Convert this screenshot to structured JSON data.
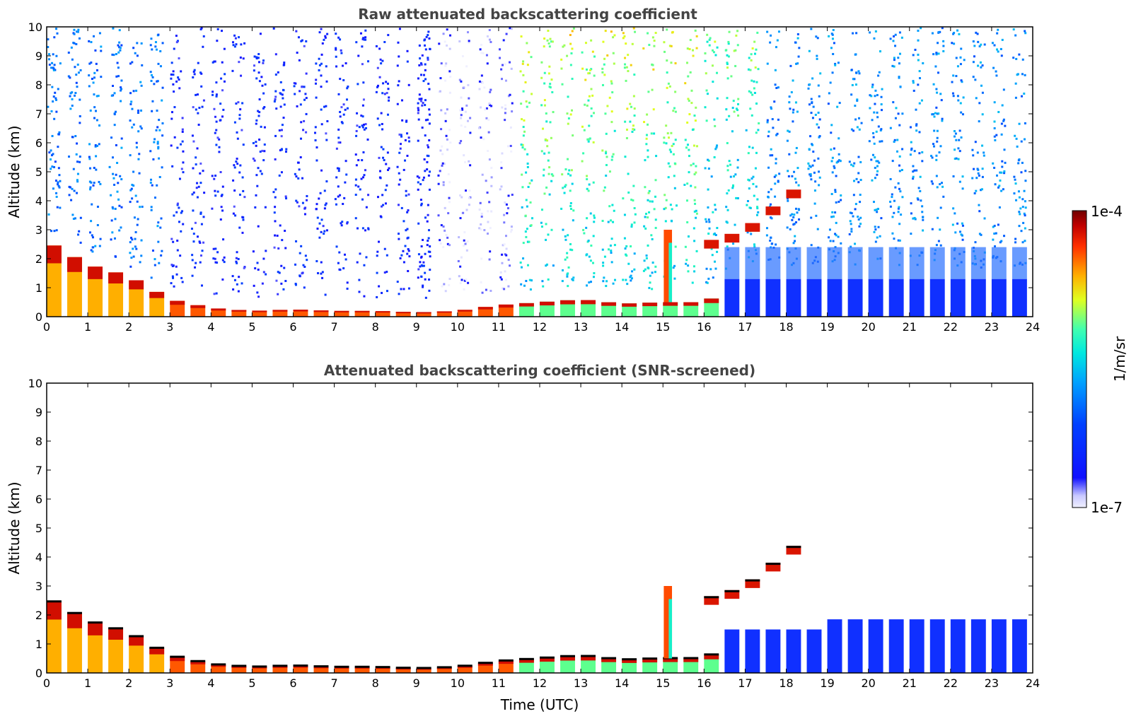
{
  "chart_data": [
    {
      "type": "heatmap",
      "title": "Raw attenuated backscattering coefficient",
      "xlabel": "",
      "ylabel": "Altitude (km)",
      "xlim": [
        0,
        24
      ],
      "ylim": [
        0,
        10
      ],
      "xticks": [
        "0",
        "1",
        "2",
        "3",
        "4",
        "5",
        "6",
        "7",
        "8",
        "9",
        "10",
        "11",
        "12",
        "13",
        "14",
        "15",
        "16",
        "17",
        "18",
        "19",
        "20",
        "21",
        "22",
        "23",
        "24"
      ],
      "yticks": [
        "0",
        "1",
        "2",
        "3",
        "4",
        "5",
        "6",
        "7",
        "8",
        "9",
        "10"
      ],
      "features": [
        {
          "name": "boundary-layer",
          "description": "low-level aerosol layer",
          "x_range": [
            0,
            24
          ],
          "top_km_by_hour": [
            2.6,
            1.8,
            1.4,
            0.6,
            0.3,
            0.2,
            0.25,
            0.2,
            0.2,
            0.15,
            0.2,
            0.4,
            0.5,
            0.6,
            0.45,
            0.5,
            0.5,
            1.2,
            1.3,
            1.3,
            1.3,
            1.3,
            1.3,
            1.2
          ]
        },
        {
          "name": "elevated-layer",
          "description": "rising cloud layer",
          "points": [
            [
              16.2,
              2.5
            ],
            [
              16.5,
              2.6
            ],
            [
              17.0,
              2.9
            ],
            [
              17.5,
              3.4
            ],
            [
              18.0,
              4.1
            ],
            [
              18.4,
              4.4
            ]
          ]
        },
        {
          "name": "convective-plume",
          "x": 15.1,
          "top_km": 3.0
        }
      ]
    },
    {
      "type": "heatmap",
      "title": "Attenuated backscattering coefficient (SNR-screened)",
      "xlabel": "Time (UTC)",
      "ylabel": "Altitude (km)",
      "xlim": [
        0,
        24
      ],
      "ylim": [
        0,
        10
      ],
      "xticks": [
        "0",
        "1",
        "2",
        "3",
        "4",
        "5",
        "6",
        "7",
        "8",
        "9",
        "10",
        "11",
        "12",
        "13",
        "14",
        "15",
        "16",
        "17",
        "18",
        "19",
        "20",
        "21",
        "22",
        "23",
        "24"
      ],
      "yticks": [
        "0",
        "1",
        "2",
        "3",
        "4",
        "5",
        "6",
        "7",
        "8",
        "9",
        "10"
      ]
    }
  ],
  "colorbar": {
    "label": "1/m/sr",
    "max_label": "1e-4",
    "min_label": "1e-7",
    "colors": [
      "#e8e8ff",
      "#1a1aff",
      "#0050ff",
      "#00c8ff",
      "#40ffc0",
      "#ffff00",
      "#ff8000",
      "#ff0000",
      "#800000"
    ]
  }
}
